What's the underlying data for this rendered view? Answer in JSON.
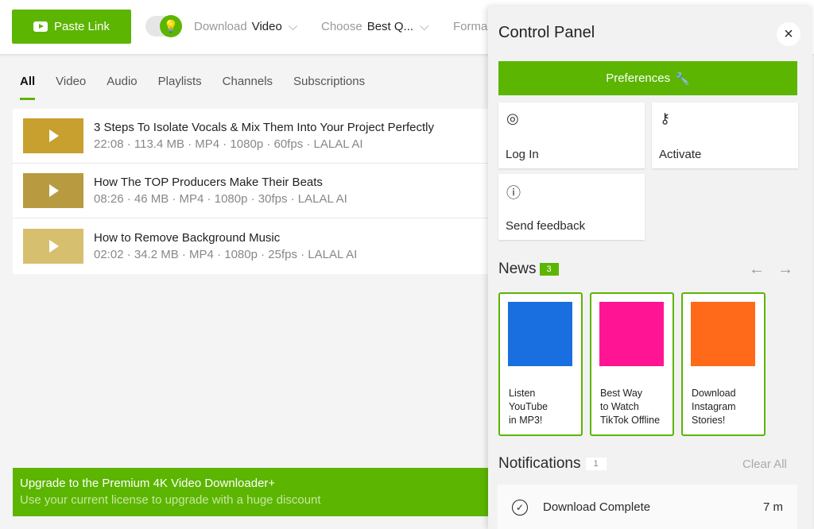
{
  "toolbar": {
    "paste_label": "Paste Link",
    "download_label": "Download",
    "download_value": "Video",
    "choose_label": "Choose",
    "choose_value": "Best Q...",
    "format_label": "Forma"
  },
  "tabs": [
    "All",
    "Video",
    "Audio",
    "Playlists",
    "Channels",
    "Subscriptions"
  ],
  "items": [
    {
      "title": "3 Steps To Isolate Vocals & Mix Them Into Your Project Perfectly",
      "meta": "22:08 · 113.4 MB · MP4 · 1080p · 60fps · LALAL AI"
    },
    {
      "title": "How The TOP Producers Make Their Beats",
      "meta": "08:26 · 46 MB · MP4 · 1080p · 30fps · LALAL AI"
    },
    {
      "title": "How to Remove Background Music",
      "meta": "02:02 · 34.2 MB · MP4 · 1080p · 25fps · LALAL AI"
    }
  ],
  "upgrade": {
    "title": "Upgrade to the Premium 4K Video Downloader+",
    "subtitle": "Use your current license to upgrade with a huge discount"
  },
  "panel": {
    "title": "Control Panel",
    "close": "×",
    "preferences": "Preferences",
    "login": "Log In",
    "activate": "Activate",
    "feedback": "Send feedback",
    "news_title": "News",
    "news_count": "3",
    "news": [
      {
        "l1": "Listen",
        "l2": "YouTube",
        "l3": "in MP3!",
        "color": "#1a6fe0"
      },
      {
        "l1": "Best Way",
        "l2": "to Watch",
        "l3": "TikTok Offline",
        "color": "#ff1493"
      },
      {
        "l1": "Download",
        "l2": "Instagram",
        "l3": "Stories!",
        "color": "#ff6a1a"
      }
    ],
    "notifications_title": "Notifications",
    "notifications_count": "1",
    "clear_all": "Clear All",
    "notification": {
      "text": "Download Complete",
      "time": "7 m"
    }
  },
  "colors": {
    "accent": "#5cb500"
  }
}
